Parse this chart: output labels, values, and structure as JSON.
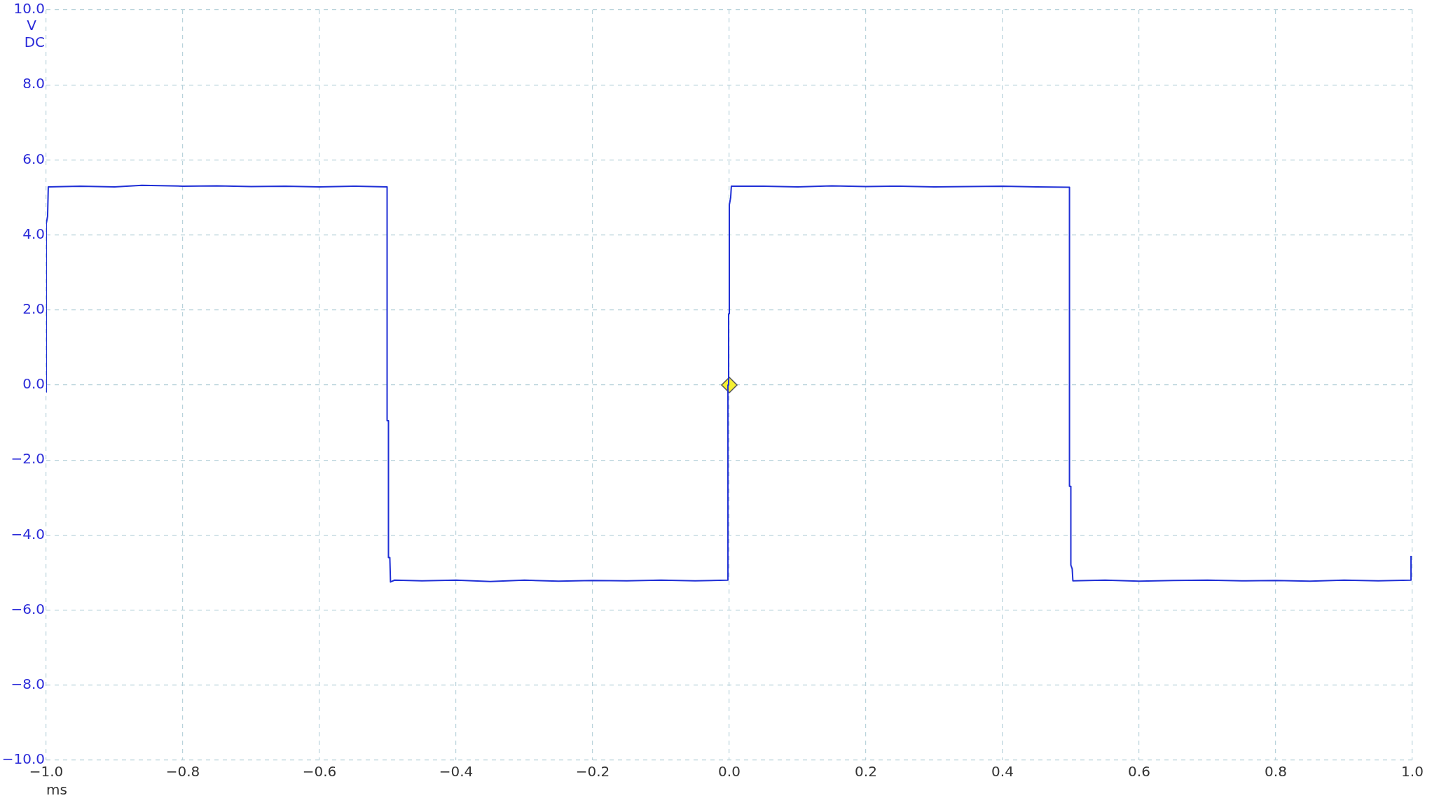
{
  "chart_data": {
    "type": "line",
    "xlabel": "ms",
    "ylabel": "V\nDC",
    "xlim": [
      -1.0,
      1.0
    ],
    "ylim": [
      -10.0,
      10.0
    ],
    "xticks": [
      {
        "value": -1,
        "label": "−1.0"
      },
      {
        "value": -0.8,
        "label": "−0.8"
      },
      {
        "value": -0.6,
        "label": "−0.6"
      },
      {
        "value": -0.4,
        "label": "−0.4"
      },
      {
        "value": -0.2,
        "label": "−0.2"
      },
      {
        "value": 0,
        "label": "0.0"
      },
      {
        "value": 0.2,
        "label": "0.2"
      },
      {
        "value": 0.4,
        "label": "0.4"
      },
      {
        "value": 0.6,
        "label": "0.6"
      },
      {
        "value": 0.8,
        "label": "0.8"
      },
      {
        "value": 1,
        "label": "1.0"
      }
    ],
    "yticks": [
      {
        "value": -10,
        "label": "−10.0"
      },
      {
        "value": -8,
        "label": "−8.0"
      },
      {
        "value": -6,
        "label": "−6.0"
      },
      {
        "value": -4,
        "label": "−4.0"
      },
      {
        "value": -2,
        "label": "−2.0"
      },
      {
        "value": 0,
        "label": "0.0"
      },
      {
        "value": 2,
        "label": "2.0"
      },
      {
        "value": 4,
        "label": "4.0"
      },
      {
        "value": 6,
        "label": "6.0"
      },
      {
        "value": 8,
        "label": "8.0"
      },
      {
        "value": 10,
        "label": "10.0"
      }
    ],
    "grid": true,
    "legend": false,
    "line_style": "solid",
    "series": [
      {
        "type": "line",
        "color": "#1f2fd6",
        "marker": "none",
        "x": [
          -1.0,
          -1.0,
          -0.998,
          -0.997,
          -0.95,
          -0.9,
          -0.86,
          -0.8,
          -0.75,
          -0.7,
          -0.65,
          -0.6,
          -0.55,
          -0.501,
          -0.501,
          -0.499,
          -0.499,
          -0.497,
          -0.496,
          -0.49,
          -0.45,
          -0.4,
          -0.35,
          -0.3,
          -0.25,
          -0.2,
          -0.15,
          -0.1,
          -0.05,
          -0.002,
          -0.002,
          -0.001,
          -0.001,
          0.0,
          0.0,
          0.002,
          0.003,
          0.05,
          0.1,
          0.15,
          0.2,
          0.25,
          0.3,
          0.35,
          0.4,
          0.45,
          0.498,
          0.498,
          0.5,
          0.5,
          0.502,
          0.503,
          0.55,
          0.6,
          0.65,
          0.7,
          0.75,
          0.8,
          0.85,
          0.9,
          0.95,
          0.998,
          0.998
        ],
        "values": [
          -0.2,
          4.3,
          4.5,
          5.28,
          5.3,
          5.28,
          5.32,
          5.3,
          5.31,
          5.29,
          5.3,
          5.28,
          5.3,
          5.28,
          -0.95,
          -0.95,
          -4.6,
          -4.6,
          -5.25,
          -5.2,
          -5.22,
          -5.2,
          -5.24,
          -5.2,
          -5.23,
          -5.21,
          -5.22,
          -5.2,
          -5.22,
          -5.2,
          0,
          0,
          1.9,
          1.9,
          4.8,
          5.0,
          5.3,
          5.3,
          5.28,
          5.31,
          5.29,
          5.3,
          5.28,
          5.29,
          5.3,
          5.28,
          5.27,
          -2.7,
          -2.7,
          -4.8,
          -4.9,
          -5.22,
          -5.2,
          -5.23,
          -5.21,
          -5.2,
          -5.22,
          -5.21,
          -5.23,
          -5.2,
          -5.22,
          -5.2,
          -4.55
        ]
      },
      {
        "type": "scatter",
        "color": "#f5f032",
        "marker": "diamond",
        "x": [
          0
        ],
        "values": [
          0
        ]
      }
    ]
  }
}
